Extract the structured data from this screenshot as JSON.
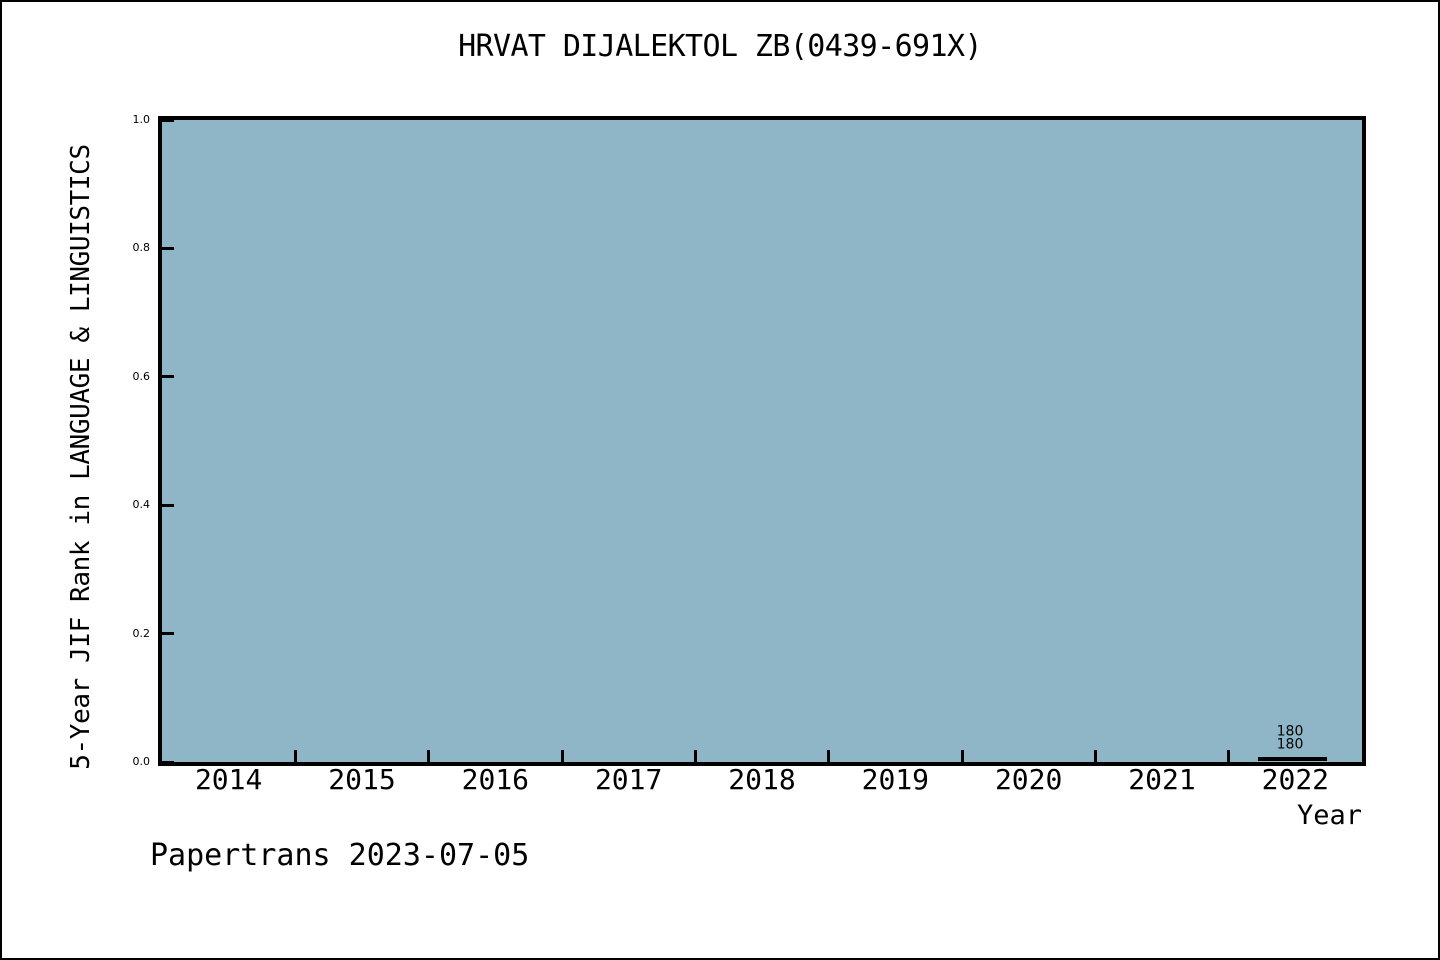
{
  "page": {
    "branding": "Papertrans 2023-07-05"
  },
  "chart_data": {
    "type": "line",
    "title": "HRVAT DIJALEKTOL ZB(0439-691X)",
    "xlabel": "Year",
    "ylabel": "5-Year JIF Rank in LANGUAGE & LINGUISTICS",
    "xlim": [
      2013.5,
      2022.5
    ],
    "ylim": [
      0.0,
      1.0
    ],
    "grid": false,
    "legend": "none",
    "plot_bg_color": "#8EB6C6",
    "line_color": "#000000",
    "text_color": "#000000",
    "x_tick_values": [
      2014,
      2015,
      2016,
      2017,
      2018,
      2019,
      2020,
      2021,
      2022
    ],
    "x_tick_labels": [
      "2014",
      "2015",
      "2016",
      "2017",
      "2018",
      "2019",
      "2020",
      "2021",
      "2022"
    ],
    "x_tick_mark_positions": [
      2014.5,
      2015.5,
      2016.5,
      2017.5,
      2018.5,
      2019.5,
      2020.5,
      2021.5
    ],
    "y_tick_values": [
      0.0,
      0.2,
      0.4,
      0.6,
      0.8,
      1.0
    ],
    "y_tick_labels": [
      "0.0",
      "0.2",
      "0.4",
      "0.6",
      "0.8",
      "1.0"
    ],
    "series": [
      {
        "name": "5-year-jif-rank-series-1",
        "x": [
          2021.72,
          2022.24
        ],
        "y": [
          0.004,
          0.004
        ],
        "value_label": "180"
      },
      {
        "name": "5-year-jif-rank-series-2",
        "x": [
          2021.72,
          2022.24
        ],
        "y": [
          0.004,
          0.004
        ],
        "value_label": "180"
      }
    ],
    "segment": {
      "x0": 2021.72,
      "x1": 2022.24,
      "y": 0.004
    },
    "annotations": [
      {
        "text": "180",
        "x": 2021.96,
        "y": 0.047
      },
      {
        "text": "180",
        "x": 2021.96,
        "y": 0.026
      }
    ]
  }
}
